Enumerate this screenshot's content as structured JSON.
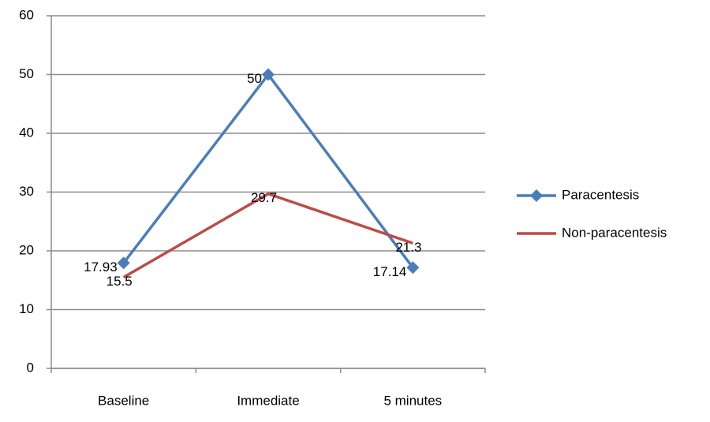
{
  "chart_data": {
    "type": "line",
    "categories": [
      "Baseline",
      "Immediate",
      "5 minutes"
    ],
    "series": [
      {
        "name": "Paracentesis",
        "color": "#4a7ebb",
        "marker": "diamond",
        "values": [
          17.93,
          50,
          17.14
        ]
      },
      {
        "name": "Non-paracentesis",
        "color": "#be4b48",
        "values": [
          15.5,
          29.7,
          21.3
        ]
      }
    ],
    "ylim": [
      0,
      60
    ],
    "yticks": [
      0,
      10,
      20,
      30,
      40,
      50,
      60
    ],
    "grid": true,
    "legend": "right"
  }
}
